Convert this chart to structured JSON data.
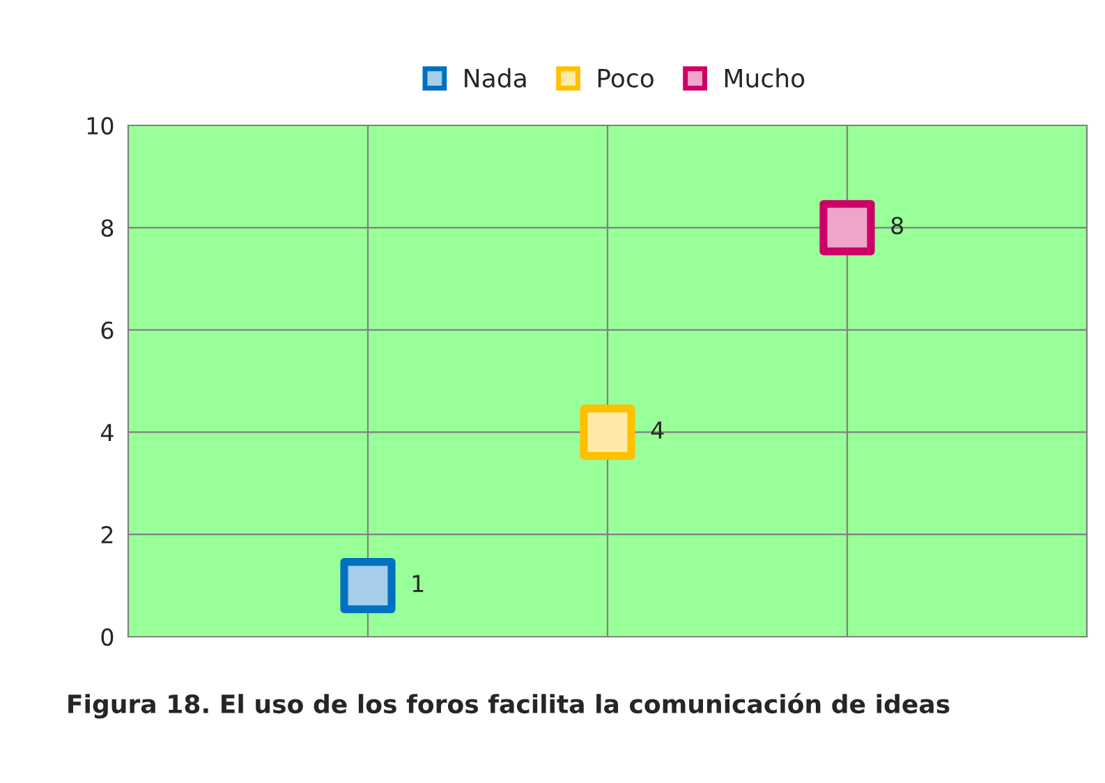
{
  "chart_data": {
    "type": "scatter",
    "categories": [
      null,
      null,
      null
    ],
    "series": [
      {
        "name": "Nada",
        "color": "#0070c0",
        "values": [
          1,
          null,
          null
        ]
      },
      {
        "name": "Poco",
        "color": "#ffc000",
        "values": [
          null,
          4,
          null
        ]
      },
      {
        "name": "Mucho",
        "color": "#cc0066",
        "values": [
          null,
          null,
          8
        ]
      }
    ],
    "ylim": [
      0,
      10
    ],
    "yticks": [
      0,
      2,
      4,
      6,
      8,
      10
    ],
    "grid": true,
    "legend": "top",
    "marker": "square",
    "data_labels": true,
    "annotations": [
      "Figura 18. El uso de los foros facilita la comunicación de ideas"
    ]
  }
}
